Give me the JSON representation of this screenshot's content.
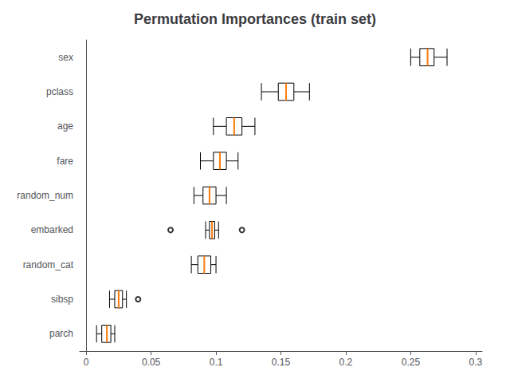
{
  "chart_data": {
    "type": "boxplot",
    "orientation": "horizontal",
    "title": "Permutation Importances (train set)",
    "categories": [
      "sex",
      "pclass",
      "age",
      "fare",
      "random_num",
      "embarked",
      "random_cat",
      "sibsp",
      "parch"
    ],
    "series": [
      {
        "type": "boxplot",
        "color": "black",
        "values": [
          {
            "whislo": 0.25,
            "q1": 0.257,
            "q3": 0.268,
            "whishi": 0.278
          },
          {
            "whislo": 0.135,
            "q1": 0.148,
            "q3": 0.16,
            "whishi": 0.172
          },
          {
            "whislo": 0.098,
            "q1": 0.108,
            "q3": 0.12,
            "whishi": 0.13
          },
          {
            "whislo": 0.088,
            "q1": 0.098,
            "q3": 0.108,
            "whishi": 0.117
          },
          {
            "whislo": 0.083,
            "q1": 0.09,
            "q3": 0.1,
            "whishi": 0.108
          },
          {
            "whislo": 0.092,
            "q1": 0.095,
            "q3": 0.099,
            "whishi": 0.102
          },
          {
            "whislo": 0.081,
            "q1": 0.086,
            "q3": 0.096,
            "whishi": 0.1
          },
          {
            "whislo": 0.018,
            "q1": 0.022,
            "q3": 0.028,
            "whishi": 0.031
          },
          {
            "whislo": 0.008,
            "q1": 0.012,
            "q3": 0.019,
            "whishi": 0.022
          }
        ]
      },
      {
        "type": "median",
        "color": "#ff7f0e",
        "values": [
          0.263,
          0.154,
          0.114,
          0.103,
          0.095,
          0.097,
          0.091,
          0.025,
          0.016
        ]
      },
      {
        "type": "scatter",
        "marker": "open_circle",
        "color": "black",
        "values": [
          [],
          [],
          [],
          [],
          [],
          [
            0.065,
            0.12
          ],
          [],
          [
            0.04
          ],
          []
        ]
      }
    ],
    "xlim": [
      -0.005,
      0.305
    ],
    "xticks": [
      0,
      0.05,
      0.1,
      0.15,
      0.2,
      0.25,
      0.3
    ],
    "grid": false
  }
}
